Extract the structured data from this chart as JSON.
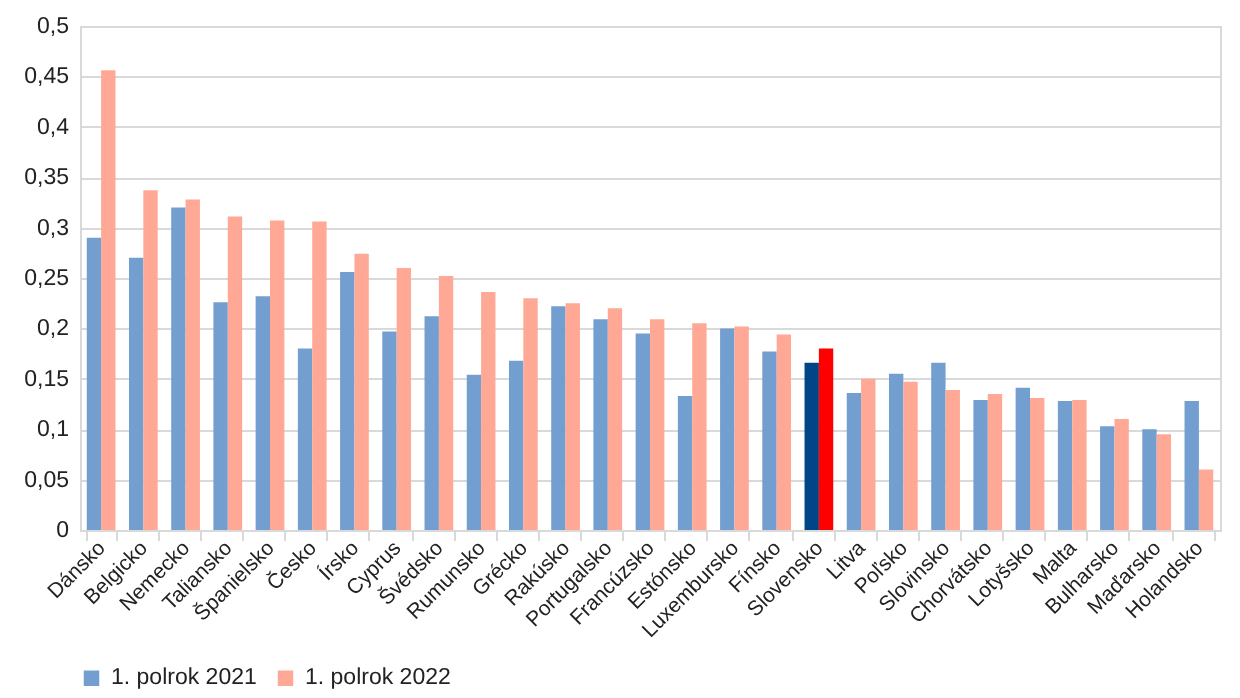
{
  "chart_data": {
    "type": "bar",
    "categories": [
      "Dánsko",
      "Belgicko",
      "Nemecko",
      "Taliansko",
      "Španielsko",
      "Česko",
      "Írsko",
      "Cyprus",
      "Švédsko",
      "Rumunsko",
      "Grécko",
      "Rakúsko",
      "Portugalsko",
      "Francúzsko",
      "Estónsko",
      "Luxembursko",
      "Fínsko",
      "Slovensko",
      "Litva",
      "Poľsko",
      "Slovinsko",
      "Chorvátsko",
      "Lotyšsko",
      "Malta",
      "Bulharsko",
      "Maďarsko",
      "Holandsko"
    ],
    "series": [
      {
        "name": "1. polrok 2021",
        "color": "#729fcf",
        "colors": [
          "#729fcf",
          "#729fcf",
          "#729fcf",
          "#729fcf",
          "#729fcf",
          "#729fcf",
          "#729fcf",
          "#729fcf",
          "#729fcf",
          "#729fcf",
          "#729fcf",
          "#729fcf",
          "#729fcf",
          "#729fcf",
          "#729fcf",
          "#729fcf",
          "#729fcf",
          "#004586",
          "#729fcf",
          "#729fcf",
          "#729fcf",
          "#729fcf",
          "#729fcf",
          "#729fcf",
          "#729fcf",
          "#729fcf",
          "#729fcf"
        ],
        "values": [
          0.29,
          0.27,
          0.32,
          0.226,
          0.232,
          0.18,
          0.256,
          0.197,
          0.212,
          0.154,
          0.168,
          0.222,
          0.209,
          0.195,
          0.133,
          0.2,
          0.177,
          0.166,
          0.136,
          0.155,
          0.166,
          0.129,
          0.141,
          0.128,
          0.103,
          0.1,
          0.128
        ]
      },
      {
        "name": "1. polrok 2022",
        "color": "#ffa895",
        "colors": [
          "#ffa895",
          "#ffa895",
          "#ffa895",
          "#ffa895",
          "#ffa895",
          "#ffa895",
          "#ffa895",
          "#ffa895",
          "#ffa895",
          "#ffa895",
          "#ffa895",
          "#ffa895",
          "#ffa895",
          "#ffa895",
          "#ffa895",
          "#ffa895",
          "#ffa895",
          "#ff0000",
          "#ffa895",
          "#ffa895",
          "#ffa895",
          "#ffa895",
          "#ffa895",
          "#ffa895",
          "#ffa895",
          "#ffa895",
          "#ffa895"
        ],
        "values": [
          0.456,
          0.337,
          0.328,
          0.311,
          0.307,
          0.306,
          0.274,
          0.26,
          0.252,
          0.236,
          0.23,
          0.225,
          0.22,
          0.209,
          0.205,
          0.202,
          0.194,
          0.18,
          0.15,
          0.147,
          0.139,
          0.135,
          0.131,
          0.129,
          0.11,
          0.095,
          0.06
        ]
      }
    ],
    "ylim": [
      0,
      0.5
    ],
    "yticks": [
      0,
      {
        "value": 0.05,
        "label": "0,05"
      },
      {
        "value": 0.1,
        "label": "0,1"
      },
      {
        "value": 0.15,
        "label": "0,15"
      },
      {
        "value": 0.2,
        "label": "0,2"
      },
      {
        "value": 0.25,
        "label": "0,25"
      },
      {
        "value": 0.3,
        "label": "0,3"
      },
      {
        "value": 0.35,
        "label": "0,35"
      },
      {
        "value": 0.4,
        "label": "0,4"
      },
      {
        "value": 0.45,
        "label": "0,45"
      },
      {
        "value": 0.5,
        "label": "0,5"
      }
    ],
    "grid": "y",
    "legend": "bottom"
  }
}
